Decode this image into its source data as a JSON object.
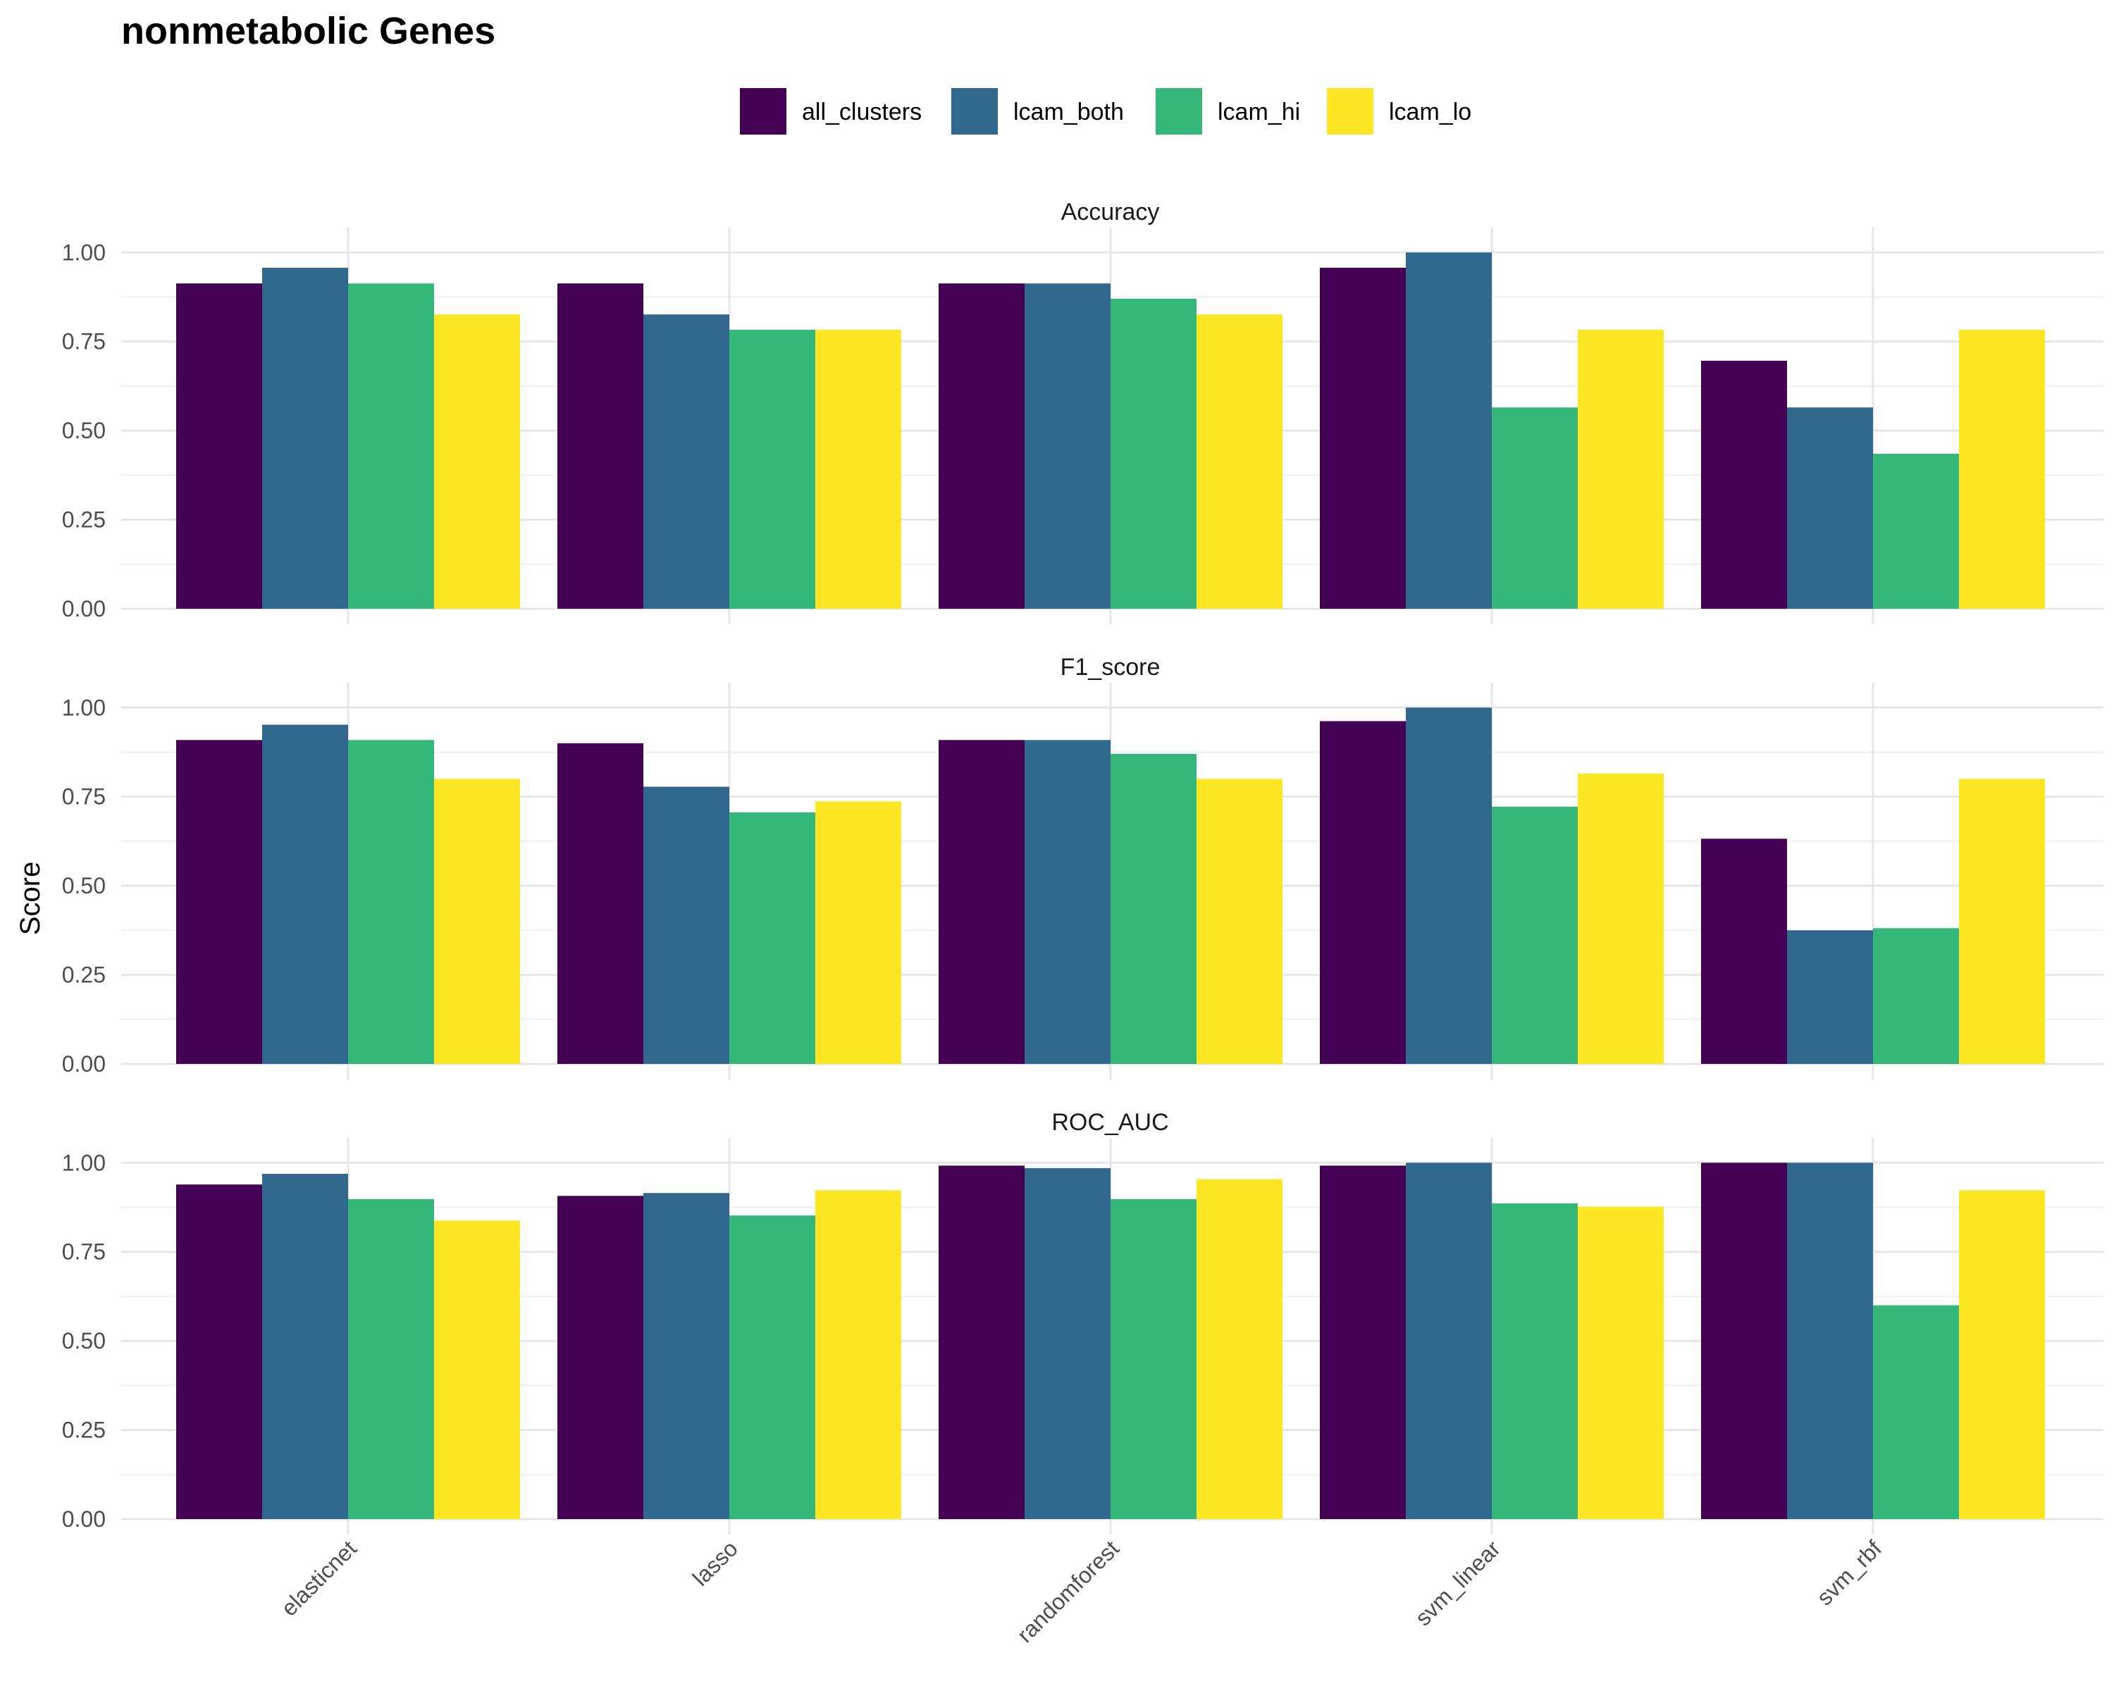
{
  "chart_data": {
    "type": "bar",
    "title": "nonmetabolic Genes",
    "ylabel": "Score",
    "xlabel": "",
    "ylim": [
      0,
      1.05
    ],
    "yticks": [
      "0.00",
      "0.25",
      "0.50",
      "0.75",
      "1.00"
    ],
    "categories": [
      "elasticnet",
      "lasso",
      "randomforest",
      "svm_linear",
      "svm_rbf"
    ],
    "legend": {
      "position": "top"
    },
    "series": [
      {
        "name": "all_clusters",
        "color": "#440154"
      },
      {
        "name": "lcam_both",
        "color": "#31688E"
      },
      {
        "name": "lcam_hi",
        "color": "#35B779"
      },
      {
        "name": "lcam_lo",
        "color": "#FDE725"
      }
    ],
    "facets": [
      {
        "label": "Accuracy",
        "values": {
          "all_clusters": [
            0.913,
            0.913,
            0.913,
            0.957,
            0.696
          ],
          "lcam_both": [
            0.957,
            0.826,
            0.913,
            1.0,
            0.565
          ],
          "lcam_hi": [
            0.913,
            0.783,
            0.87,
            0.565,
            0.435
          ],
          "lcam_lo": [
            0.826,
            0.783,
            0.826,
            0.783,
            0.783
          ]
        }
      },
      {
        "label": "F1_score",
        "values": {
          "all_clusters": [
            0.909,
            0.9,
            0.909,
            0.962,
            0.632
          ],
          "lcam_both": [
            0.952,
            0.778,
            0.909,
            1.0,
            0.375
          ],
          "lcam_hi": [
            0.909,
            0.706,
            0.87,
            0.722,
            0.381
          ],
          "lcam_lo": [
            0.8,
            0.737,
            0.8,
            0.815,
            0.8
          ]
        }
      },
      {
        "label": "ROC_AUC",
        "values": {
          "all_clusters": [
            0.939,
            0.907,
            0.992,
            0.992,
            1.0
          ],
          "lcam_both": [
            0.969,
            0.915,
            0.985,
            1.0,
            1.0
          ],
          "lcam_hi": [
            0.898,
            0.852,
            0.898,
            0.886,
            0.6
          ],
          "lcam_lo": [
            0.838,
            0.923,
            0.954,
            0.877,
            0.923
          ]
        }
      }
    ]
  }
}
